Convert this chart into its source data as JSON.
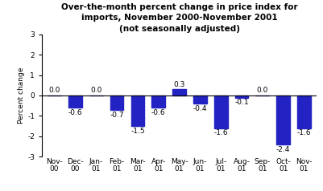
{
  "categories": [
    "Nov-\n00",
    "Dec-\n00",
    "Jan-\n01",
    "Feb-\n01",
    "Mar-\n01",
    "Apr-\n01",
    "May-\n01",
    "Jun-\n01",
    "Jul-\n01",
    "Aug-\n01",
    "Sep-\n01",
    "Oct-\n01",
    "Nov-\n01"
  ],
  "values": [
    0.0,
    -0.6,
    0.0,
    -0.7,
    -1.5,
    -0.6,
    0.3,
    -0.4,
    -1.6,
    -0.1,
    0.0,
    -2.4,
    -1.6
  ],
  "bar_color": "#2323c4",
  "title_line1": "Over-the-month percent change in price index for",
  "title_line2": "imports, November 2000-November 2001",
  "title_line3": "(not seasonally adjusted)",
  "ylabel": "Percent change",
  "ylim": [
    -3,
    3
  ],
  "yticks": [
    -3,
    -2,
    -1,
    0,
    1,
    2,
    3
  ],
  "title_fontsize": 7.5,
  "label_fontsize": 6.5,
  "tick_fontsize": 6.5,
  "ylabel_fontsize": 6.5,
  "bar_width": 0.65,
  "background_color": "#ffffff"
}
